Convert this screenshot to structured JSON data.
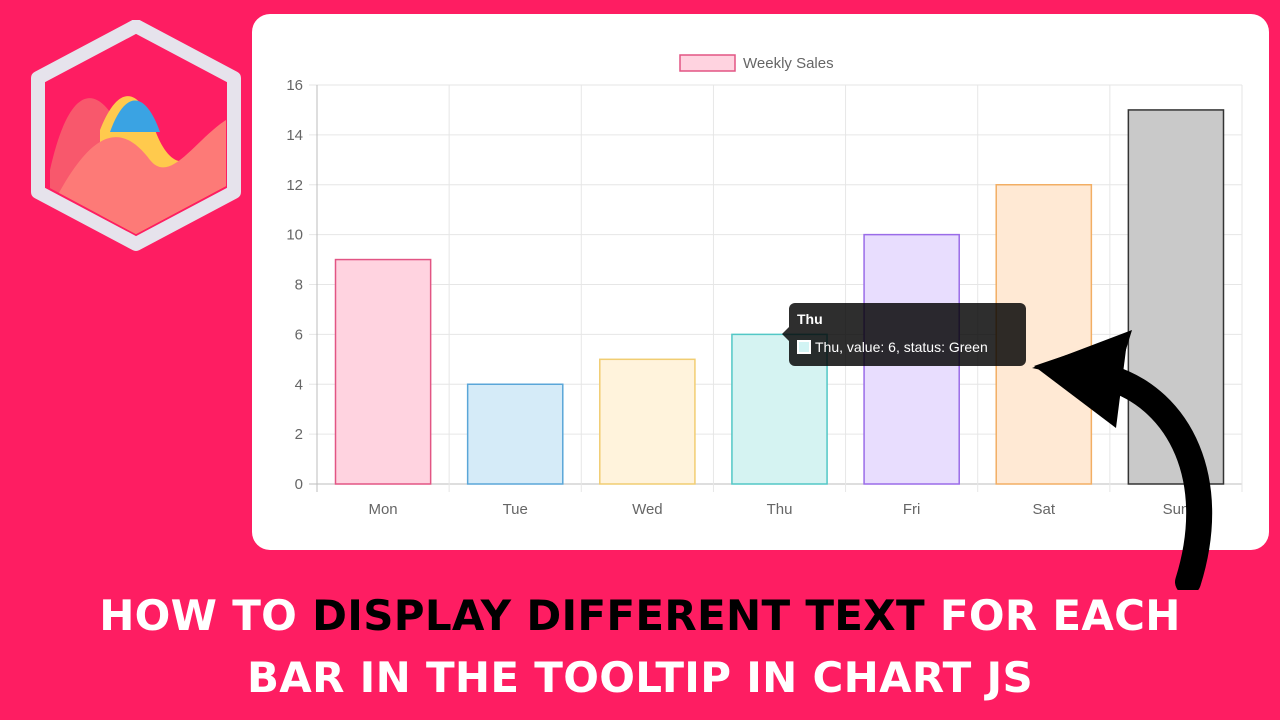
{
  "headline": {
    "line1_part1": "HOW TO ",
    "line1_highlight": "DISPLAY DIFFERENT TEXT",
    "line1_part2": " FOR EACH",
    "line2": "BAR IN THE TOOLTIP IN CHART JS"
  },
  "colors": {
    "background": "#fe1d62",
    "card": "#ffffff",
    "highlight_text": "#000000",
    "headline_text": "#ffffff"
  },
  "icons": {
    "logo": "chartjs-logo-icon",
    "arrow": "curved-arrow-icon"
  },
  "tooltip": {
    "title": "Thu",
    "body": "Thu, value: 6, status: Green",
    "swatch_color": "#d2f4f4"
  },
  "chart_data": {
    "type": "bar",
    "categories": [
      "Mon",
      "Tue",
      "Wed",
      "Thu",
      "Fri",
      "Sat",
      "Sun"
    ],
    "series": [
      {
        "name": "Weekly Sales",
        "values": [
          9,
          4,
          5,
          6,
          10,
          12,
          15
        ]
      }
    ],
    "fill_colors": [
      "#ffd3e0",
      "#d5ebf8",
      "#fff3dc",
      "#d5f3f2",
      "#e8ddfe",
      "#ffe9d4",
      "#c9c9c9"
    ],
    "border_colors": [
      "#e25584",
      "#5aa6d8",
      "#f1cd72",
      "#52c7c6",
      "#9a6ce8",
      "#f2ae64",
      "#333333"
    ],
    "legend_swatch_fill": "#ffd3e0",
    "legend_swatch_border": "#e25584",
    "ylim": [
      0,
      16
    ],
    "yticks": [
      0,
      2,
      4,
      6,
      8,
      10,
      12,
      14,
      16
    ],
    "grid": true,
    "legend_position": "top"
  }
}
